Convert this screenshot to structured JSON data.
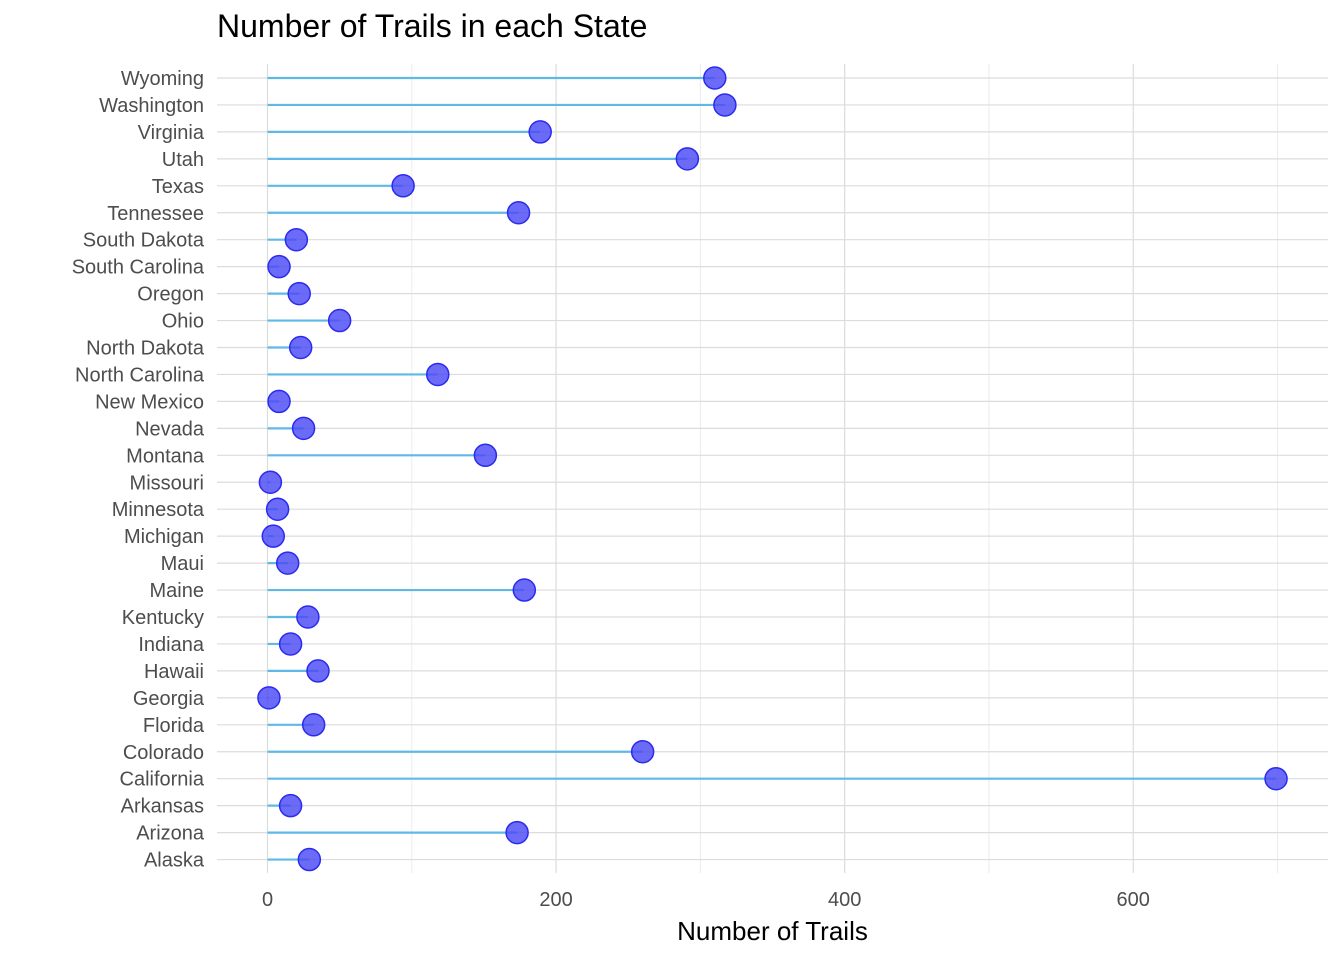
{
  "chart_data": {
    "type": "lollipop",
    "title": "Number of Trails in each State",
    "xlabel": "Number of Trails",
    "ylabel": "",
    "xlim": [
      -35,
      735
    ],
    "x_ticks": [
      0,
      200,
      400,
      600
    ],
    "grid": true,
    "legend": "none",
    "colors": {
      "stem": "#5fb8e6",
      "point_fill": "#4a4af5",
      "point_stroke": "#2b2bf0",
      "grid_major": "#dcdcdc",
      "grid_minor": "#ececec"
    },
    "categories": [
      "Wyoming",
      "Washington",
      "Virginia",
      "Utah",
      "Texas",
      "Tennessee",
      "South Dakota",
      "South Carolina",
      "Oregon",
      "Ohio",
      "North Dakota",
      "North Carolina",
      "New Mexico",
      "Nevada",
      "Montana",
      "Missouri",
      "Minnesota",
      "Michigan",
      "Maui",
      "Maine",
      "Kentucky",
      "Indiana",
      "Hawaii",
      "Georgia",
      "Florida",
      "Colorado",
      "California",
      "Arkansas",
      "Arizona",
      "Alaska"
    ],
    "values": [
      310,
      317,
      189,
      291,
      94,
      174,
      20,
      8,
      22,
      50,
      23,
      118,
      8,
      25,
      151,
      2,
      7,
      4,
      14,
      178,
      28,
      16,
      35,
      1,
      32,
      260,
      699,
      16,
      173,
      29
    ]
  }
}
